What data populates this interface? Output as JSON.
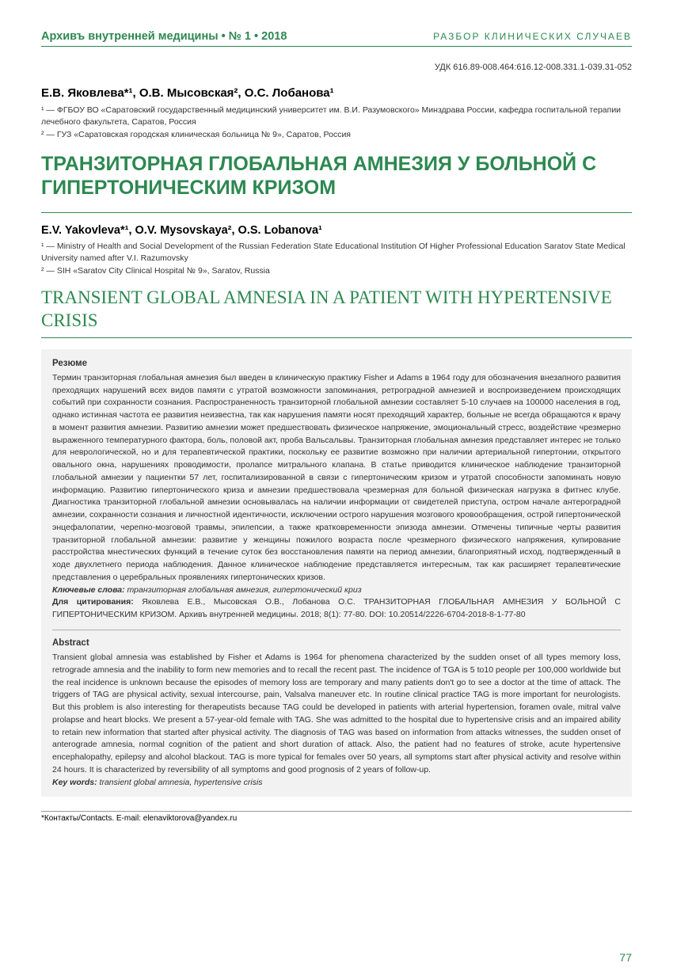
{
  "header": {
    "journal": "Архивъ внутренней медицины • № 1 • 2018",
    "section": "РАЗБОР КЛИНИЧЕСКИХ СЛУЧАЕВ"
  },
  "udc": "УДК 616.89-008.464:616.12-008.331.1-039.31-052",
  "ru": {
    "authors": "Е.В. Яковлева*¹, О.В. Мысовская², О.С. Лобанова¹",
    "affil1": "¹ — ФГБОУ ВО «Саратовский государственный медицинский университет им. В.И. Разумовского» Минздрава России, кафедра госпитальной терапии лечебного факультета, Саратов, Россия",
    "affil2": "² — ГУЗ «Саратовская городская клиническая больница № 9», Саратов, Россия",
    "title": "ТРАНЗИТОРНАЯ ГЛОБАЛЬНАЯ АМНЕЗИЯ У БОЛЬНОЙ С ГИПЕРТОНИЧЕСКИМ КРИЗОМ"
  },
  "en": {
    "authors": "E.V. Yakovleva*¹, O.V. Mysovskaya², O.S. Lobanova¹",
    "affil1": "¹ — Ministry of Health and Social Development of the Russian Federation State Educational Institution Of Higher Professional Education Saratov State Medical University named after V.I. Razumovsky",
    "affil2": "² — SIH «Saratov City Clinical Hospital № 9», Saratov, Russia",
    "title": "TRANSIENT GLOBAL AMNESIA IN A PATIENT WITH HYPERTENSIVE CRISIS"
  },
  "abstract_ru": {
    "heading": "Резюме",
    "body": "Термин транзиторная глобальная амнезия был введен в клиническую практику Fisher и Adams в 1964 году для обозначения внезапного развития преходящих нарушений всех видов памяти с утратой возможности запоминания, ретроградной амнезией и воспроизведением происходящих событий при сохранности сознания. Распространенность транзиторной глобальной амнезии составляет 5-10 случаев на 100000 населения в год, однако истинная частота ее развития неизвестна, так как нарушения памяти носят преходящий характер, больные не всегда обращаются к врачу в момент развития амнезии. Развитию амнезии может предшествовать физическое напряжение, эмоциональный стресс, воздействие чрезмерно выраженного температурного фактора, боль, половой акт, проба Вальсальвы. Транзиторная глобальная амнезия представляет интерес не только для неврологической, но и для терапевтической практики, поскольку ее развитие возможно при наличии артериальной гипертонии, открытого овального окна, нарушениях проводимости, пролапсе митрального клапана. В статье приводится клиническое наблюдение транзиторной глобальной амнезии у пациентки 57 лет, госпитализированной в связи с гипертоническим кризом и утратой способности запоминать новую информацию. Развитию гипертонического криза и амнезии предшествовала чрезмерная для больной физическая нагрузка в фитнес клубе. Диагностика транзиторной глобальной амнезии основывалась на наличии информации от свидетелей приступа, остром начале антероградной амнезии, сохранности сознания и личностной идентичности, исключении острого нарушения мозгового кровообращения, острой гипертонической энцефалопатии, черепно-мозговой травмы, эпилепсии, а также кратковременности эпизода амнезии. Отмечены типичные черты развития транзиторной глобальной амнезии: развитие у женщины пожилого возраста после чрезмерного физического напряжения, купирование расстройства мнестических функций в течение суток без восстановления памяти на период амнезии, благоприятный исход, подтвержденный в ходе двухлетнего периода наблюдения. Данное клиническое наблюдение представляется интересным, так как расширяет терапевтические представления о церебральных проявлениях гипертонических кризов.",
    "keywords_label": "Ключевые слова:",
    "keywords": " транзиторная глобальная амнезия, гипертонический криз",
    "citation_label": "Для цитирования:",
    "citation": " Яковлева Е.В., Мысовская О.В., Лобанова О.С. ТРАНЗИТОРНАЯ ГЛОБАЛЬНАЯ АМНЕЗИЯ У БОЛЬНОЙ С ГИПЕРТОНИЧЕСКИМ КРИЗОМ. Архивъ внутренней медицины. 2018; 8(1): 77-80. DOI: 10.20514/2226-6704-2018-8-1-77-80"
  },
  "abstract_en": {
    "heading": "Abstract",
    "body": "Transient global amnesia was established by Fisher et Adams is 1964 for phenomena characterized by the sudden onset of all types memory loss, retrograde amnesia and the inability to form new memories and to recall the recent past. The incidence of TGA is 5 to10 people per 100,000 worldwide but the real incidence is unknown because the episodes of memory loss are temporary and many patients don't go to see a doctor at the time of attack. The triggers of TAG are physical activity, sexual intercourse, pain, Valsalva maneuver etc. In routine clinical practice TAG is more important for neurologists. But this problem is also interesting for therapeutists because TAG could be developed in patients with arterial hypertension, foramen ovale, mitral valve prolapse and heart blocks. We present a 57-year-old female with TAG. She was admitted to the hospital due to hypertensive crisis and an impaired ability to retain new information that started after physical activity. The diagnosis of TAG was based on information from attacks witnesses, the sudden onset of anterograde amnesia, normal cognition of the patient and short duration of attack. Also, the patient had no features of stroke, acute hypertensive encephalopathy, epilepsy and alcohol blackout. TAG is more typical for females over 50 years, all symptoms start after physical activity and resolve within 24 hours. It is characterized by reversibility of all symptoms and good prognosis of 2 years of follow-up.",
    "keywords_label": "Key words:",
    "keywords": " transient global amnesia, hypertensive crisis"
  },
  "contacts": "*Контакты/Contacts. E-mail: elenaviktorova@yandex.ru",
  "page_number": "77",
  "colors": {
    "accent": "#2d8850",
    "abstract_bg": "#f2f2f2",
    "text": "#333333"
  }
}
